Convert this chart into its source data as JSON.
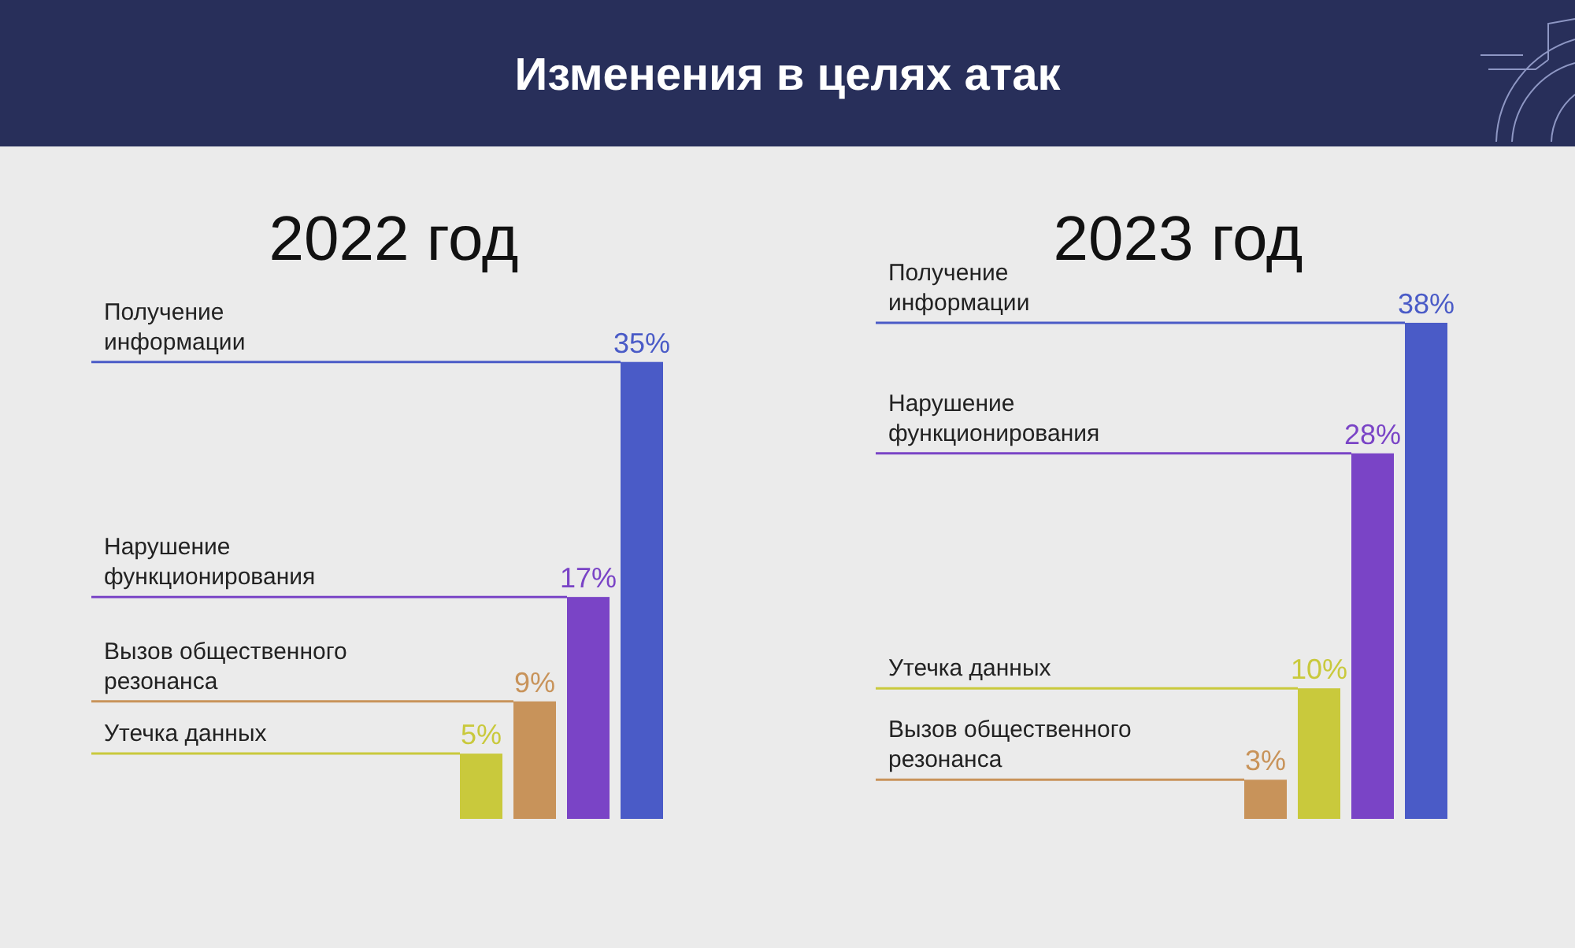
{
  "chart_data": [
    {
      "type": "bar",
      "title": "2022 год",
      "annotations": [
        "Изменения в целях атак"
      ],
      "categories": [
        null,
        null,
        null,
        null
      ],
      "values": [
        5,
        9,
        17,
        35
      ],
      "colors": [
        "#c9c93c",
        "#c8935a",
        "#7a44c6",
        "#4a5bc7"
      ],
      "value_labels": [
        "5%",
        "9%",
        "17%",
        "35%"
      ],
      "ref_lines": [
        {
          "axis": "y",
          "value": 5,
          "label": "Утечка данных",
          "color": "#c9c93c"
        },
        {
          "axis": "y",
          "value": 9,
          "label": "Вызов общественного резонанса",
          "color": "#c8935a"
        },
        {
          "axis": "y",
          "value": 17,
          "label": "Нарушение функционирования",
          "color": "#7a44c6"
        },
        {
          "axis": "y",
          "value": 35,
          "label": "Получение информации",
          "color": "#4a5bc7"
        }
      ]
    },
    {
      "type": "bar",
      "title": "2023 год",
      "categories": [
        null,
        null,
        null,
        null
      ],
      "values": [
        3,
        10,
        28,
        38
      ],
      "colors": [
        "#c8935a",
        "#c9c93c",
        "#7a44c6",
        "#4a5bc7"
      ],
      "value_labels": [
        "3%",
        "10%",
        "28%",
        "38%"
      ],
      "ref_lines": [
        {
          "axis": "y",
          "value": 3,
          "label": "Вызов общественного резонанса",
          "color": "#c8935a"
        },
        {
          "axis": "y",
          "value": 10,
          "label": "Утечка данных",
          "color": "#c9c93c"
        },
        {
          "axis": "y",
          "value": 28,
          "label": "Нарушение функционирования",
          "color": "#7a44c6"
        },
        {
          "axis": "y",
          "value": 38,
          "label": "Получение информации",
          "color": "#4a5bc7"
        }
      ]
    }
  ]
}
